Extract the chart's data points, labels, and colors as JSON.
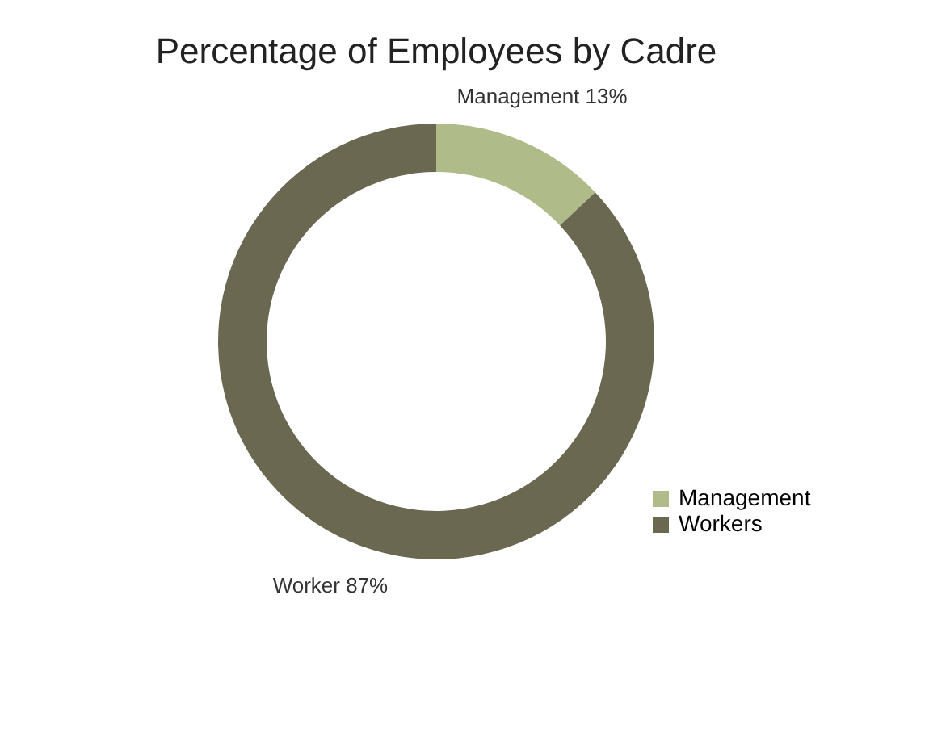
{
  "chart_data": {
    "type": "donut",
    "title": "Percentage of Employees by Cadre",
    "categories": [
      "Management",
      "Workers"
    ],
    "values": [
      13,
      87
    ],
    "colors": [
      "#b0bb8a",
      "#6b6852"
    ],
    "value_labels": [
      "Management 13%",
      "Worker 87%"
    ],
    "legend": "bottom right"
  }
}
